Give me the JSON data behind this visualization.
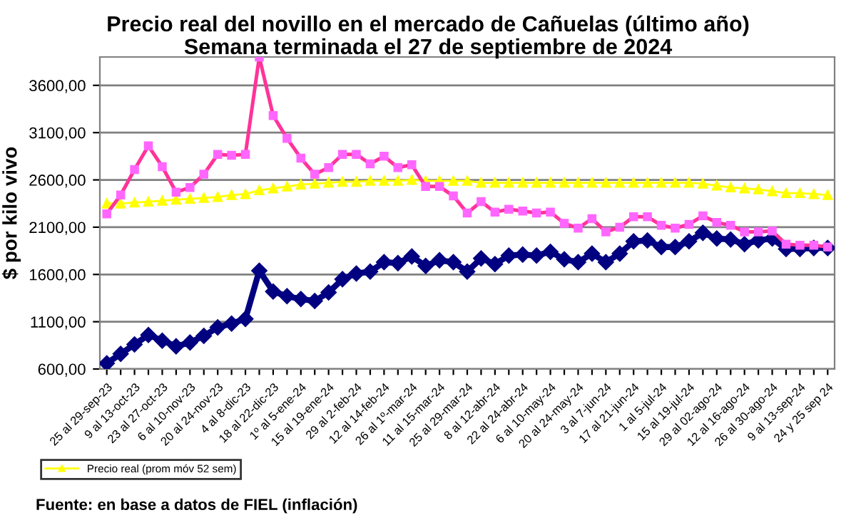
{
  "chart_data": {
    "type": "line",
    "title": "Precio real del novillo en el mercado de Cañuelas (último año)",
    "subtitle": "Semana terminada el 27 de septiembre de 2024",
    "ylabel": "$ por kilo vivo",
    "categories": [
      "25 al 29-sep-23",
      null,
      "9 al 13-oct-23",
      null,
      "23 al 27-oct-23",
      null,
      "6 al 10-nov-23",
      null,
      "20 al 24-nov-23",
      null,
      "4 al 8-dic-23",
      null,
      "18 al 22-dic-23",
      null,
      "1º al 5-ene-24",
      null,
      "15 al 19-ene-24",
      null,
      "29 al 2-feb-24",
      null,
      "12 al 14-feb-24",
      null,
      "26 al 1º-mar-24",
      null,
      "11 al 15-mar-24",
      null,
      "25 al 29-mar-24",
      null,
      "8 al 12-abr-24",
      null,
      "22 al 24-abr-24",
      null,
      "6 al 10-may-24",
      null,
      "20 al 24-may-24",
      null,
      "3 al 7-jun-24",
      null,
      "17 al 21-jun-24",
      null,
      "1 al 5-jul-24",
      null,
      "15 al 19-jul-24",
      null,
      "29 al 02-ago-24",
      null,
      "12 al 16-ago-24",
      null,
      "26 al 30-ago-24",
      null,
      "9 al 13-sep-24",
      null,
      "24 y 25 sep 24"
    ],
    "series": [
      {
        "color": "#ff3399",
        "marker": "square",
        "values": [
          2240,
          2440,
          2710,
          2960,
          2740,
          2470,
          2520,
          2660,
          2870,
          2860,
          2870,
          3900,
          3280,
          3040,
          2830,
          2660,
          2730,
          2870,
          2870,
          2770,
          2850,
          2730,
          2760,
          2530,
          2530,
          2430,
          2250,
          2370,
          2260,
          2290,
          2270,
          2250,
          2260,
          2140,
          2090,
          2190,
          2050,
          2100,
          2210,
          2210,
          2120,
          2090,
          2130,
          2220,
          2150,
          2120,
          2050,
          2050,
          2060,
          1920,
          1910,
          1910,
          1890
        ]
      },
      {
        "color": "#000080",
        "marker": "diamond",
        "values": [
          660,
          760,
          860,
          960,
          900,
          840,
          880,
          950,
          1040,
          1080,
          1130,
          1640,
          1420,
          1370,
          1340,
          1320,
          1410,
          1550,
          1610,
          1630,
          1730,
          1720,
          1790,
          1690,
          1750,
          1730,
          1630,
          1770,
          1710,
          1800,
          1810,
          1800,
          1840,
          1760,
          1730,
          1820,
          1730,
          1820,
          1950,
          1960,
          1890,
          1890,
          1950,
          2040,
          1980,
          1970,
          1920,
          1960,
          1980,
          1870,
          1870,
          1880,
          1880
        ]
      },
      {
        "name": "Precio real (prom móv 52 sem)",
        "color": "#ffff00",
        "marker": "triangle",
        "values": [
          2350,
          2350,
          2360,
          2370,
          2380,
          2390,
          2400,
          2410,
          2420,
          2440,
          2450,
          2490,
          2510,
          2530,
          2550,
          2560,
          2570,
          2580,
          2580,
          2590,
          2590,
          2590,
          2600,
          2590,
          2590,
          2590,
          2590,
          2570,
          2570,
          2570,
          2570,
          2570,
          2570,
          2570,
          2570,
          2570,
          2570,
          2570,
          2570,
          2570,
          2570,
          2570,
          2570,
          2560,
          2540,
          2520,
          2510,
          2500,
          2480,
          2460,
          2460,
          2450,
          2440
        ]
      }
    ],
    "ylim": [
      600,
      3900
    ],
    "yticks": [
      {
        "value": 600,
        "label": "600,00"
      },
      {
        "value": 1100,
        "label": "1100,00"
      },
      {
        "value": 1600,
        "label": "1600,00"
      },
      {
        "value": 2100,
        "label": "2100,00"
      },
      {
        "value": 2600,
        "label": "2600,00"
      },
      {
        "value": 3100,
        "label": "3100,00"
      },
      {
        "value": 3600,
        "label": "3600,00"
      }
    ],
    "grid": "y",
    "legend": "bottom left",
    "line_style": "solid",
    "annotations": [
      "Fuente: en base a datos de FIEL (inflación)"
    ]
  }
}
